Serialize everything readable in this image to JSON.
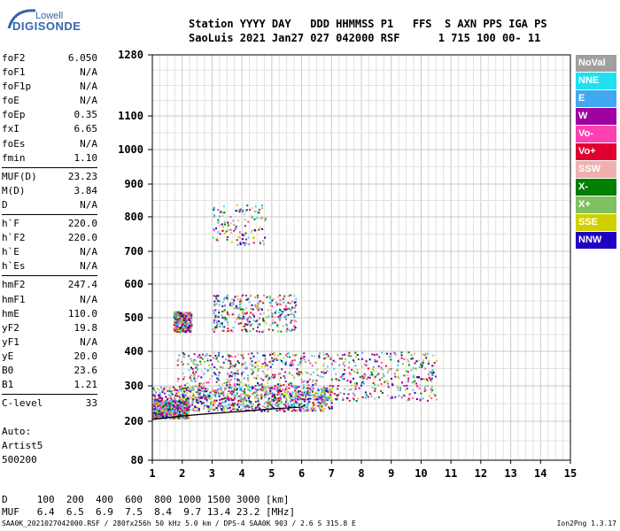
{
  "logo": {
    "line1": "Lowell",
    "line2": "DIGISONDE"
  },
  "header": {
    "line1": "Station YYYY DAY   DDD HHMMSS P1   FFS  S AXN PPS IGA PS",
    "line2": "SaoLuis 2021 Jan27 027 042000 RSF      1 715 100 00- 11"
  },
  "params": {
    "group1": [
      {
        "label": "foF2",
        "value": "6.050"
      },
      {
        "label": "foF1",
        "value": "N/A"
      },
      {
        "label": "foF1p",
        "value": "N/A"
      },
      {
        "label": "foE",
        "value": "N/A"
      },
      {
        "label": "foEp",
        "value": "0.35"
      },
      {
        "label": "fxI",
        "value": "6.65"
      },
      {
        "label": "foEs",
        "value": "N/A"
      },
      {
        "label": "fmin",
        "value": "1.10"
      }
    ],
    "group2": [
      {
        "label": "MUF(D)",
        "value": "23.23"
      },
      {
        "label": "M(D)",
        "value": "3.84"
      },
      {
        "label": "D",
        "value": "N/A"
      }
    ],
    "group3": [
      {
        "label": "h`F",
        "value": "220.0"
      },
      {
        "label": "h`F2",
        "value": "220.0"
      },
      {
        "label": "h`E",
        "value": "N/A"
      },
      {
        "label": "h`Es",
        "value": "N/A"
      }
    ],
    "group4": [
      {
        "label": "hmF2",
        "value": "247.4"
      },
      {
        "label": "hmF1",
        "value": "N/A"
      },
      {
        "label": "hmE",
        "value": "110.0"
      },
      {
        "label": "yF2",
        "value": "19.8"
      },
      {
        "label": "yF1",
        "value": "N/A"
      },
      {
        "label": "yE",
        "value": "20.0"
      },
      {
        "label": "B0",
        "value": "23.6"
      },
      {
        "label": "B1",
        "value": "1.21"
      }
    ],
    "group5": [
      {
        "label": "C-level",
        "value": "33"
      }
    ]
  },
  "auto": {
    "line1": "Auto:",
    "line2": "Artist5",
    "line3": "500200"
  },
  "legend": [
    {
      "label": "NoVal",
      "color": "#a0a0a0"
    },
    {
      "label": "NNE",
      "color": "#20e0f0"
    },
    {
      "label": "E",
      "color": "#40a8f0"
    },
    {
      "label": "W",
      "color": "#a000a0"
    },
    {
      "label": "Vo-",
      "color": "#ff40b0"
    },
    {
      "label": "Vo+",
      "color": "#e00030"
    },
    {
      "label": "SSW",
      "color": "#f0b0b0"
    },
    {
      "label": "X-",
      "color": "#008000"
    },
    {
      "label": "X+",
      "color": "#80c060"
    },
    {
      "label": "SSE",
      "color": "#d0d000"
    },
    {
      "label": "NNW",
      "color": "#2000c0"
    }
  ],
  "bottom": {
    "line1": "D     100  200  400  600  800 1000 1500 3000 [km]",
    "line2": "MUF   6.4  6.5  6.9  7.5  8.4  9.7 13.4 23.2 [MHz]"
  },
  "footer": {
    "left": "SAA0K_2021027042000.RSF / 280fx256h 50 kHz 5.0 km / DPS-4 SAA0K 903 / 2.6 S 315.8 E",
    "right": "Ion2Png 1.3.17"
  },
  "chart_data": {
    "type": "scatter",
    "title": "",
    "xlabel": "",
    "ylabel": "",
    "xlim": [
      1,
      15
    ],
    "ylim": [
      80,
      1280
    ],
    "y_scale": "virtual height (nonlinear)",
    "x_ticks": [
      1,
      2,
      3,
      4,
      5,
      6,
      7,
      8,
      9,
      10,
      11,
      12,
      13,
      14,
      15
    ],
    "y_ticks": [
      80,
      200,
      300,
      400,
      500,
      600,
      700,
      800,
      900,
      1000,
      1100,
      1280
    ],
    "grid": true,
    "legend_position": "right",
    "trace": {
      "name": "",
      "points": [
        [
          1.0,
          205
        ],
        [
          2.0,
          215
        ],
        [
          3.0,
          222
        ],
        [
          4.0,
          228
        ],
        [
          5.0,
          235
        ],
        [
          6.0,
          240
        ],
        [
          6.1,
          246
        ]
      ]
    },
    "clusters": [
      {
        "x_range": [
          1.0,
          2.2
        ],
        "y_range": [
          210,
          260
        ],
        "density": "high"
      },
      {
        "x_range": [
          1.0,
          7.0
        ],
        "y_range": [
          230,
          300
        ],
        "density": "high"
      },
      {
        "x_range": [
          1.8,
          10.5
        ],
        "y_range": [
          260,
          400
        ],
        "density": "high"
      },
      {
        "x_range": [
          3.0,
          5.8
        ],
        "y_range": [
          460,
          570
        ],
        "density": "medium"
      },
      {
        "x_range": [
          3.0,
          4.8
        ],
        "y_range": [
          720,
          840
        ],
        "density": "low"
      },
      {
        "x_range": [
          1.7,
          2.3
        ],
        "y_range": [
          460,
          520
        ],
        "density": "medium"
      }
    ]
  }
}
